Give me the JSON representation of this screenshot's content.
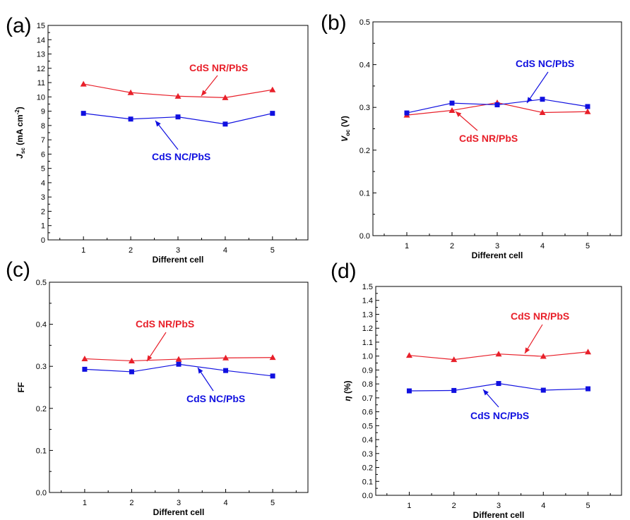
{
  "chart_data": [
    {
      "type": "line",
      "panel_label": "(a)",
      "xlabel": "Different cell",
      "ylabel": {
        "main": "J",
        "sub": "sc",
        "unit_pre": " (mA cm",
        "sup": "-2",
        "unit_post": ")"
      },
      "x": [
        1,
        2,
        3,
        4,
        5
      ],
      "xlim": [
        0.25,
        5.75
      ],
      "ylim": [
        0,
        15
      ],
      "yticks": [
        "0",
        "1",
        "2",
        "3",
        "4",
        "5",
        "6",
        "7",
        "8",
        "9",
        "10",
        "11",
        "12",
        "13",
        "14",
        "15"
      ],
      "xticks": [
        "1",
        "2",
        "3",
        "4",
        "5"
      ],
      "series": [
        {
          "name": "CdS NR/PbS",
          "marker": "triangle",
          "color": "#e8202a",
          "values": [
            10.9,
            10.3,
            10.05,
            9.95,
            10.5
          ]
        },
        {
          "name": "CdS NC/PbS",
          "marker": "square",
          "color": "#1010e0",
          "values": [
            8.85,
            8.45,
            8.6,
            8.1,
            8.85
          ]
        }
      ],
      "annotations": [
        {
          "text": "CdS NR/PbS",
          "color": "#e8202a"
        },
        {
          "text": "CdS NC/PbS",
          "color": "#1010e0"
        }
      ]
    },
    {
      "type": "line",
      "panel_label": "(b)",
      "xlabel": "Different cell",
      "ylabel": {
        "main": "V",
        "sub": "oc",
        "unit_pre": " (V)",
        "sup": "",
        "unit_post": ""
      },
      "x": [
        1,
        2,
        3,
        4,
        5
      ],
      "xlim": [
        0.25,
        5.75
      ],
      "ylim": [
        0,
        0.5
      ],
      "yticks": [
        "0.0",
        "0.1",
        "0.2",
        "0.3",
        "0.4",
        "0.5"
      ],
      "xticks": [
        "1",
        "2",
        "3",
        "4",
        "5"
      ],
      "series": [
        {
          "name": "CdS NR/PbS",
          "marker": "triangle",
          "color": "#e8202a",
          "values": [
            0.282,
            0.293,
            0.311,
            0.288,
            0.29
          ]
        },
        {
          "name": "CdS NC/PbS",
          "marker": "square",
          "color": "#1010e0",
          "values": [
            0.287,
            0.31,
            0.306,
            0.319,
            0.302
          ]
        }
      ],
      "annotations": [
        {
          "text": "CdS NC/PbS",
          "color": "#1010e0"
        },
        {
          "text": "CdS NR/PbS",
          "color": "#e8202a"
        }
      ]
    },
    {
      "type": "line",
      "panel_label": "(c)",
      "xlabel": "Different cell",
      "ylabel": {
        "main": "FF",
        "sub": "",
        "unit_pre": "",
        "sup": "",
        "unit_post": "",
        "upright": true
      },
      "x": [
        1,
        2,
        3,
        4,
        5
      ],
      "xlim": [
        0.25,
        5.75
      ],
      "ylim": [
        0,
        0.5
      ],
      "yticks": [
        "0.0",
        "0.1",
        "0.2",
        "0.3",
        "0.4",
        "0.5"
      ],
      "xticks": [
        "1",
        "2",
        "3",
        "4",
        "5"
      ],
      "series": [
        {
          "name": "CdS NR/PbS",
          "marker": "triangle",
          "color": "#e8202a",
          "values": [
            0.318,
            0.313,
            0.317,
            0.32,
            0.321
          ]
        },
        {
          "name": "CdS NC/PbS",
          "marker": "square",
          "color": "#1010e0",
          "values": [
            0.293,
            0.287,
            0.305,
            0.29,
            0.277
          ]
        }
      ],
      "annotations": [
        {
          "text": "CdS NR/PbS",
          "color": "#e8202a"
        },
        {
          "text": "CdS NC/PbS",
          "color": "#1010e0"
        }
      ]
    },
    {
      "type": "line",
      "panel_label": "(d)",
      "xlabel": "Different cell",
      "ylabel": {
        "main": "η",
        "sub": "",
        "unit_pre": " (%)",
        "sup": "",
        "unit_post": ""
      },
      "x": [
        1,
        2,
        3,
        4,
        5
      ],
      "xlim": [
        0.25,
        5.75
      ],
      "ylim": [
        0,
        1.5
      ],
      "yticks": [
        "0.0",
        "0.1",
        "0.2",
        "0.3",
        "0.4",
        "0.5",
        "0.6",
        "0.7",
        "0.8",
        "0.9",
        "1.0",
        "1.1",
        "1.2",
        "1.3",
        "1.4",
        "1.5"
      ],
      "xticks": [
        "1",
        "2",
        "3",
        "4",
        "5"
      ],
      "series": [
        {
          "name": "CdS NR/PbS",
          "marker": "triangle",
          "color": "#e8202a",
          "values": [
            1.005,
            0.975,
            1.015,
            0.998,
            1.03
          ]
        },
        {
          "name": "CdS NC/PbS",
          "marker": "square",
          "color": "#1010e0",
          "values": [
            0.75,
            0.753,
            0.803,
            0.755,
            0.765
          ]
        }
      ],
      "annotations": [
        {
          "text": "CdS NR/PbS",
          "color": "#e8202a"
        },
        {
          "text": "CdS NC/PbS",
          "color": "#1010e0"
        }
      ]
    }
  ]
}
